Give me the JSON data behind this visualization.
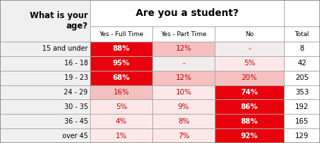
{
  "col_headers": [
    "Yes - Full Time",
    "Yes - Part Time",
    "No",
    "Total"
  ],
  "row_labels": [
    "15 and under",
    "16 - 18",
    "19 - 23",
    "24 - 29",
    "30 - 35",
    "36 - 45",
    "over 45"
  ],
  "data": [
    [
      "88%",
      "12%",
      "-",
      "8"
    ],
    [
      "95%",
      "-",
      "5%",
      "42"
    ],
    [
      "68%",
      "12%",
      "20%",
      "205"
    ],
    [
      "16%",
      "10%",
      "74%",
      "353"
    ],
    [
      "5%",
      "9%",
      "86%",
      "192"
    ],
    [
      "4%",
      "8%",
      "88%",
      "165"
    ],
    [
      "1%",
      "7%",
      "92%",
      "129"
    ]
  ],
  "cell_colors": [
    [
      "#e8000d",
      "#f5c0c0",
      "#f2eded",
      "#ffffff"
    ],
    [
      "#e8000d",
      "#f2eded",
      "#fce8e8",
      "#ffffff"
    ],
    [
      "#e8000d",
      "#f5c0c0",
      "#f5c0c0",
      "#ffffff"
    ],
    [
      "#f5c0c0",
      "#fce8e8",
      "#e8000d",
      "#ffffff"
    ],
    [
      "#fce8e8",
      "#fce8e8",
      "#e8000d",
      "#ffffff"
    ],
    [
      "#fce8e8",
      "#fce8e8",
      "#e8000d",
      "#ffffff"
    ],
    [
      "#fce8e8",
      "#fce8e8",
      "#e8000d",
      "#ffffff"
    ]
  ],
  "bold_cells": [
    [
      true,
      false,
      false,
      false
    ],
    [
      true,
      false,
      false,
      false
    ],
    [
      true,
      false,
      false,
      false
    ],
    [
      false,
      false,
      true,
      false
    ],
    [
      false,
      false,
      true,
      false
    ],
    [
      false,
      false,
      true,
      false
    ],
    [
      false,
      false,
      true,
      false
    ]
  ],
  "background": "#ffffff",
  "header_title_bg": "#f0f0f0",
  "row_label_bg": "#f0f0f0",
  "col_header_span_bg": "#ffffff",
  "col_header_bg": "#ffffff"
}
